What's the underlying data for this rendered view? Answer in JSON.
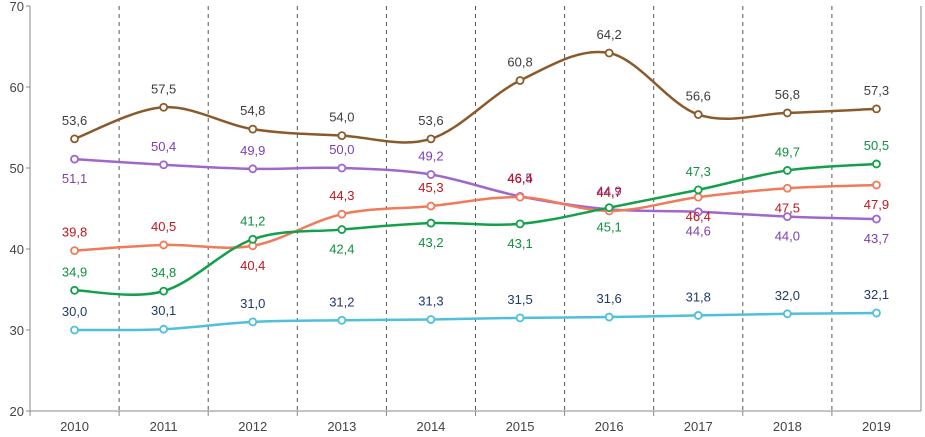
{
  "chart_data": {
    "type": "line",
    "title": "",
    "xlabel": "",
    "ylabel": "",
    "ylim": [
      20,
      70
    ],
    "y_ticks": [
      "20",
      "30",
      "40",
      "50",
      "60",
      "70"
    ],
    "categories": [
      "2010",
      "2011",
      "2012",
      "2013",
      "2014",
      "2015",
      "2016",
      "2017",
      "2018",
      "2019"
    ],
    "grid": "vertical dashed",
    "series": [
      {
        "name": "brown",
        "color": "#8B5A2B",
        "label_color": "#3d3d3d",
        "values": [
          53.6,
          57.5,
          54.8,
          54.0,
          53.6,
          60.8,
          64.2,
          56.6,
          56.8,
          57.3
        ],
        "labels": [
          "53,6",
          "57,5",
          "54,8",
          "54,0",
          "53,6",
          "60,8",
          "64,2",
          "56,6",
          "56,8",
          "57,3"
        ],
        "label_pos": [
          "above",
          "above",
          "above",
          "above",
          "above",
          "above",
          "above",
          "above",
          "above",
          "above"
        ]
      },
      {
        "name": "purple",
        "color": "#A066CC",
        "label_color": "#7B3FB0",
        "values": [
          51.1,
          50.4,
          49.9,
          50.0,
          49.2,
          46.5,
          44.9,
          44.6,
          44.0,
          43.7
        ],
        "labels": [
          "51,1",
          "50,4",
          "49,9",
          "50,0",
          "49,2",
          "46,5",
          "44,9",
          "44,6",
          "44,0",
          "43,7"
        ],
        "label_pos": [
          "below",
          "above",
          "above",
          "above",
          "above",
          "above",
          "above",
          "below",
          "below",
          "below"
        ]
      },
      {
        "name": "orange",
        "color": "#F07A5A",
        "label_color": "#C0161B",
        "values": [
          39.8,
          40.5,
          40.4,
          44.3,
          45.3,
          46.4,
          44.7,
          46.4,
          47.5,
          47.9
        ],
        "labels": [
          "39,8",
          "40,5",
          "40,4",
          "44,3",
          "45,3",
          "46,4",
          "44,7",
          "46,4",
          "47,5",
          "47,9"
        ],
        "label_pos": [
          "above",
          "above",
          "below",
          "above",
          "above",
          "above",
          "above",
          "below",
          "below",
          "below"
        ]
      },
      {
        "name": "green",
        "color": "#13A04A",
        "label_color": "#109040",
        "values": [
          34.9,
          34.8,
          41.2,
          42.4,
          43.2,
          43.1,
          45.1,
          47.3,
          49.7,
          50.5
        ],
        "labels": [
          "34,9",
          "34,8",
          "41,2",
          "42,4",
          "43,2",
          "43,1",
          "45,1",
          "47,3",
          "49,7",
          "50,5"
        ],
        "label_pos": [
          "above",
          "above",
          "above",
          "below",
          "below",
          "below",
          "below",
          "above",
          "above",
          "above"
        ]
      },
      {
        "name": "cyan",
        "color": "#4EC0DC",
        "label_color": "#1F3A68",
        "values": [
          30.0,
          30.1,
          31.0,
          31.2,
          31.3,
          31.5,
          31.6,
          31.8,
          32.0,
          32.1
        ],
        "labels": [
          "30,0",
          "30,1",
          "31,0",
          "31,2",
          "31,3",
          "31,5",
          "31,6",
          "31,8",
          "32,0",
          "32,1"
        ],
        "label_pos": [
          "above",
          "above",
          "above",
          "above",
          "above",
          "above",
          "above",
          "above",
          "above",
          "above"
        ]
      }
    ]
  }
}
